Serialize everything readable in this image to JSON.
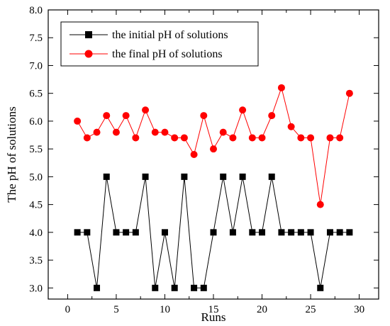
{
  "chart_data": {
    "type": "line",
    "xlabel": "Runs",
    "ylabel": "The pH of solutions",
    "xlim": [
      -2,
      32
    ],
    "ylim": [
      2.8,
      8.0
    ],
    "xticks": [
      0,
      5,
      10,
      15,
      20,
      25,
      30
    ],
    "yticks": [
      3.0,
      3.5,
      4.0,
      4.5,
      5.0,
      5.5,
      6.0,
      6.5,
      7.0,
      7.5,
      8.0
    ],
    "grid": false,
    "legend_position": "top-left",
    "x": [
      1,
      2,
      3,
      4,
      5,
      6,
      7,
      8,
      9,
      10,
      11,
      12,
      13,
      14,
      15,
      16,
      17,
      18,
      19,
      20,
      21,
      22,
      23,
      24,
      25,
      26,
      27,
      28,
      29
    ],
    "series": [
      {
        "name": "the initial pH of solutions",
        "color": "#000000",
        "marker": "square",
        "values": [
          4.0,
          4.0,
          3.0,
          5.0,
          4.0,
          4.0,
          4.0,
          5.0,
          3.0,
          4.0,
          3.0,
          5.0,
          3.0,
          3.0,
          4.0,
          5.0,
          4.0,
          5.0,
          4.0,
          4.0,
          5.0,
          4.0,
          4.0,
          4.0,
          4.0,
          3.0,
          4.0,
          4.0,
          4.0
        ]
      },
      {
        "name": "the final pH of solutions",
        "color": "#ff0000",
        "marker": "circle",
        "values": [
          6.0,
          5.7,
          5.8,
          6.1,
          5.8,
          6.1,
          5.7,
          6.2,
          5.8,
          5.8,
          5.7,
          5.7,
          5.4,
          6.1,
          5.5,
          5.8,
          5.7,
          6.2,
          5.7,
          5.7,
          6.1,
          6.6,
          5.9,
          5.7,
          5.7,
          4.5,
          5.7,
          5.7,
          6.5
        ]
      }
    ]
  }
}
